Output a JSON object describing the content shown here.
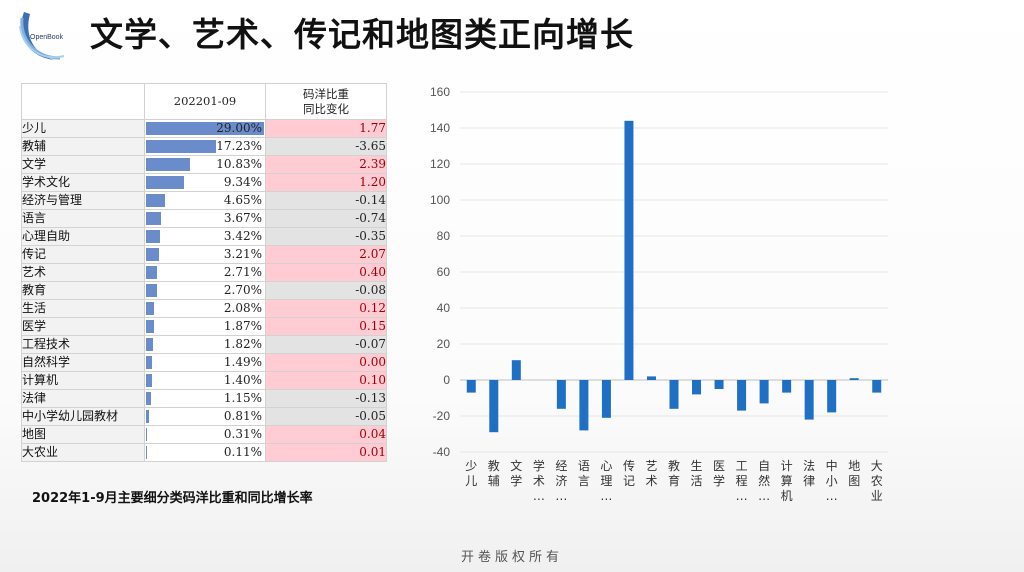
{
  "header": {
    "title": "文学、艺术、传记和地图类正向增长",
    "logo_text": "OpenBook"
  },
  "table": {
    "col_share": "202201-09",
    "col_change": "码洋比重\n同比变化",
    "rows": [
      {
        "name": "少儿",
        "share": "29.00%",
        "share_value": 29.0,
        "change": "1.77",
        "change_value": 1.77
      },
      {
        "name": "教辅",
        "share": "17.23%",
        "share_value": 17.23,
        "change": "-3.65",
        "change_value": -3.65
      },
      {
        "name": "文学",
        "share": "10.83%",
        "share_value": 10.83,
        "change": "2.39",
        "change_value": 2.39
      },
      {
        "name": "学术文化",
        "share": "9.34%",
        "share_value": 9.34,
        "change": "1.20",
        "change_value": 1.2
      },
      {
        "name": "经济与管理",
        "share": "4.65%",
        "share_value": 4.65,
        "change": "-0.14",
        "change_value": -0.14
      },
      {
        "name": "语言",
        "share": "3.67%",
        "share_value": 3.67,
        "change": "-0.74",
        "change_value": -0.74
      },
      {
        "name": "心理自助",
        "share": "3.42%",
        "share_value": 3.42,
        "change": "-0.35",
        "change_value": -0.35
      },
      {
        "name": "传记",
        "share": "3.21%",
        "share_value": 3.21,
        "change": "2.07",
        "change_value": 2.07
      },
      {
        "name": "艺术",
        "share": "2.71%",
        "share_value": 2.71,
        "change": "0.40",
        "change_value": 0.4
      },
      {
        "name": "教育",
        "share": "2.70%",
        "share_value": 2.7,
        "change": "-0.08",
        "change_value": -0.08
      },
      {
        "name": "生活",
        "share": "2.08%",
        "share_value": 2.08,
        "change": "0.12",
        "change_value": 0.12
      },
      {
        "name": "医学",
        "share": "1.87%",
        "share_value": 1.87,
        "change": "0.15",
        "change_value": 0.15
      },
      {
        "name": "工程技术",
        "share": "1.82%",
        "share_value": 1.82,
        "change": "-0.07",
        "change_value": -0.07
      },
      {
        "name": "自然科学",
        "share": "1.49%",
        "share_value": 1.49,
        "change": "0.00",
        "change_value": 0.0
      },
      {
        "name": "计算机",
        "share": "1.40%",
        "share_value": 1.4,
        "change": "0.10",
        "change_value": 0.1
      },
      {
        "name": "法律",
        "share": "1.15%",
        "share_value": 1.15,
        "change": "-0.13",
        "change_value": -0.13
      },
      {
        "name": "中小学幼儿园教材",
        "share": "0.81%",
        "share_value": 0.81,
        "change": "-0.05",
        "change_value": -0.05
      },
      {
        "name": "地图",
        "share": "0.31%",
        "share_value": 0.31,
        "change": "0.04",
        "change_value": 0.04
      },
      {
        "name": "大农业",
        "share": "0.11%",
        "share_value": 0.11,
        "change": "0.01",
        "change_value": 0.01
      }
    ]
  },
  "caption": "2022年1-9月主要细分类码洋比重和同比增长率",
  "footer": "开卷版权所有",
  "chart_data": {
    "type": "bar",
    "categories": [
      "少儿",
      "教辅",
      "文学",
      "学术…",
      "经济…",
      "语言",
      "心理…",
      "传记",
      "艺术",
      "教育",
      "生活",
      "医学",
      "工程…",
      "自然…",
      "计算机",
      "法律",
      "中小…",
      "地图",
      "大农业"
    ],
    "values": [
      -7,
      -29,
      11,
      0,
      -16,
      -28,
      -21,
      144,
      2,
      -16,
      -8,
      -5,
      -17,
      -13,
      -7,
      -22,
      -18,
      1,
      -7
    ],
    "yticks": [
      "160",
      "140",
      "120",
      "100",
      "80",
      "60",
      "40",
      "20",
      "0",
      "-20",
      "-40"
    ],
    "ylim": [
      -40,
      160
    ],
    "grid": true,
    "bar_color": "#1f6fc5",
    "title": "",
    "xlabel": "",
    "ylabel": ""
  },
  "colors": {
    "share_bar": "#6a8ccb",
    "positive_fill": "#ffccd3",
    "positive_text": "#9c0006",
    "neutral_fill": "#e3e3e3"
  }
}
